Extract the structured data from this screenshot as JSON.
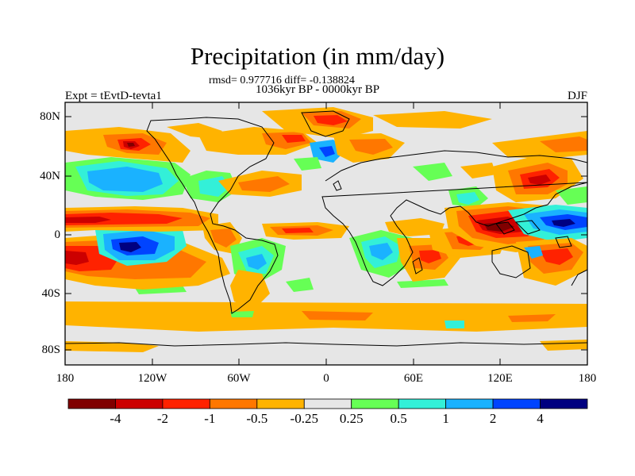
{
  "title": "Precipitation (in mm/day)",
  "stats_line": "rmsd= 0.977716 diff= -0.138824",
  "period_line": "1036kyr BP - 0000kyr BP",
  "left_label": "Expt = tEvtD-tevta1",
  "right_label": "DJF",
  "axes": {
    "y_ticks": [
      "80N",
      "40N",
      "0",
      "40S",
      "80S"
    ],
    "x_ticks": [
      "180",
      "120W",
      "60W",
      "0",
      "60E",
      "120E",
      "180"
    ]
  },
  "colorbar": {
    "labels": [
      "-4",
      "-2",
      "-1",
      "-0.5",
      "-0.25",
      "0.25",
      "0.5",
      "1",
      "2",
      "4"
    ],
    "colors": [
      "#800000",
      "#cc0000",
      "#ff2200",
      "#ff7700",
      "#ffb300",
      "#e6e6e6",
      "#66ff55",
      "#33f0d8",
      "#1ab2ff",
      "#0044ff",
      "#000080"
    ]
  },
  "map_colors": {
    "background": "#e6e6e6",
    "very_dry": "#800000",
    "dry_strong": "#cc0000",
    "dry_mid": "#ff2200",
    "dry_light": "#ff7700",
    "dry_weak": "#ffb300",
    "wet_weak": "#66ff55",
    "wet_light": "#33f0d8",
    "wet_mid": "#1ab2ff",
    "wet_strong": "#0044ff",
    "very_wet": "#000080"
  }
}
